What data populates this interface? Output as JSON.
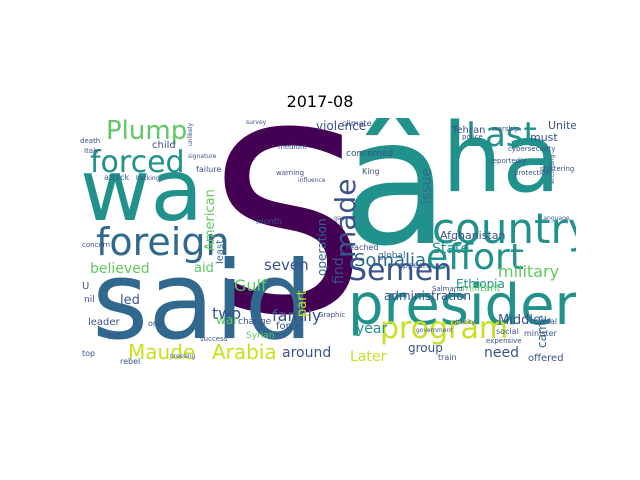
{
  "title": "2017-08",
  "palette": {
    "navy": "#3b528b",
    "teal": "#21918c",
    "green": "#5ec962",
    "yellow": "#c8e020",
    "purple": "#440154",
    "slate": "#31688e",
    "lime": "#addc30"
  },
  "words": [
    {
      "text": "S",
      "color": "#440154"
    },
    {
      "text": "â",
      "color": "#21918c"
    },
    {
      "text": "wa",
      "color": "#21918c"
    },
    {
      "text": "ha",
      "color": "#21918c"
    },
    {
      "text": "said",
      "color": "#31688e"
    },
    {
      "text": "president",
      "color": "#21918c"
    },
    {
      "text": "country",
      "color": "#21918c"
    },
    {
      "text": "foreign",
      "color": "#31688e"
    },
    {
      "text": "forced",
      "color": "#21918c"
    },
    {
      "text": "Last",
      "color": "#21918c"
    },
    {
      "text": "effort",
      "color": "#21918c"
    },
    {
      "text": "Semen",
      "color": "#3b528b"
    },
    {
      "text": "program",
      "color": "#c8e020"
    },
    {
      "text": "made",
      "color": "#3b528b"
    },
    {
      "text": "Plump",
      "color": "#5ec962"
    },
    {
      "text": "Arabia",
      "color": "#c8e020"
    },
    {
      "text": "Maude",
      "color": "#c8e020"
    },
    {
      "text": "Somalia",
      "color": "#31688e"
    },
    {
      "text": "military",
      "color": "#5ec962"
    },
    {
      "text": "family",
      "color": "#3b528b"
    },
    {
      "text": "seven",
      "color": "#3b528b"
    },
    {
      "text": "Gulf",
      "color": "#5ec962"
    },
    {
      "text": "two",
      "color": "#3b528b"
    },
    {
      "text": "believed",
      "color": "#5ec962"
    },
    {
      "text": "around",
      "color": "#3b528b"
    },
    {
      "text": "American",
      "color": "#5ec962"
    },
    {
      "text": "find",
      "color": "#3b528b"
    },
    {
      "text": "issue",
      "color": "#31688e"
    },
    {
      "text": "State",
      "color": "#21918c"
    },
    {
      "text": "year",
      "color": "#21918c"
    },
    {
      "text": "need",
      "color": "#3b528b"
    },
    {
      "text": "group",
      "color": "#3b528b"
    },
    {
      "text": "Later",
      "color": "#c8e020"
    },
    {
      "text": "Middle",
      "color": "#3b528b"
    },
    {
      "text": "Ethiopia",
      "color": "#21918c"
    },
    {
      "text": "administration",
      "color": "#3b528b"
    },
    {
      "text": "Afghanistan",
      "color": "#3b528b"
    },
    {
      "text": "operation",
      "color": "#31688e"
    },
    {
      "text": "violence",
      "color": "#3b528b"
    },
    {
      "text": "aid",
      "color": "#5ec962"
    },
    {
      "text": "led",
      "color": "#3b528b"
    },
    {
      "text": "war",
      "color": "#5ec962"
    },
    {
      "text": "part",
      "color": "#c8e020"
    },
    {
      "text": "came",
      "color": "#31688e"
    },
    {
      "text": "United",
      "color": "#3b528b"
    },
    {
      "text": "must",
      "color": "#3b528b"
    },
    {
      "text": "Tehran",
      "color": "#3b528b"
    },
    {
      "text": "least",
      "color": "#31688e"
    },
    {
      "text": "force",
      "color": "#3b528b"
    },
    {
      "text": "leader",
      "color": "#3b528b"
    },
    {
      "text": "child",
      "color": "#3b528b"
    },
    {
      "text": "concerned",
      "color": "#3b528b"
    },
    {
      "text": "militant",
      "color": "#5ec962"
    },
    {
      "text": "global",
      "color": "#31688e"
    },
    {
      "text": "appears",
      "color": "#3b528b"
    },
    {
      "text": "reached",
      "color": "#3b528b"
    },
    {
      "text": "climate",
      "color": "#3b528b"
    },
    {
      "text": "Syrian",
      "color": "#5ec962"
    },
    {
      "text": "change",
      "color": "#3b528b"
    },
    {
      "text": "month",
      "color": "#3b528b"
    },
    {
      "text": "attack",
      "color": "#31688e"
    },
    {
      "text": "failure",
      "color": "#3b528b"
    },
    {
      "text": "minister",
      "color": "#3b528b"
    },
    {
      "text": "offered",
      "color": "#3b528b"
    },
    {
      "text": "deal",
      "color": "#3b528b"
    },
    {
      "text": "train",
      "color": "#3b528b"
    },
    {
      "text": "social",
      "color": "#3b528b"
    },
    {
      "text": "top",
      "color": "#3b528b"
    },
    {
      "text": "rebel",
      "color": "#3b528b"
    },
    {
      "text": "put",
      "color": "#3b528b"
    },
    {
      "text": "one",
      "color": "#3b528b"
    },
    {
      "text": "King",
      "color": "#3b528b"
    },
    {
      "text": "protection",
      "color": "#3b528b"
    },
    {
      "text": "reportedly",
      "color": "#3b528b"
    },
    {
      "text": "warning",
      "color": "#3b528b"
    },
    {
      "text": "death",
      "color": "#3b528b"
    },
    {
      "text": "Italy",
      "color": "#3b528b"
    },
    {
      "text": "concern",
      "color": "#3b528b"
    },
    {
      "text": "expensive",
      "color": "#3b528b"
    },
    {
      "text": "warship",
      "color": "#3b528b"
    },
    {
      "text": "police",
      "color": "#3b528b"
    },
    {
      "text": "cybersecurity",
      "color": "#3b528b"
    },
    {
      "text": "Salmand",
      "color": "#3b528b"
    },
    {
      "text": "Graphic",
      "color": "#3b528b"
    },
    {
      "text": "stuttering",
      "color": "#3b528b"
    },
    {
      "text": "success",
      "color": "#3b528b"
    },
    {
      "text": "medium",
      "color": "#3b528b"
    },
    {
      "text": "survey",
      "color": "#3b528b"
    },
    {
      "text": "influence",
      "color": "#3b528b"
    },
    {
      "text": "signature",
      "color": "#3b528b"
    },
    {
      "text": "unlikely",
      "color": "#3b528b"
    },
    {
      "text": "hacking",
      "color": "#3b528b"
    },
    {
      "text": "pressing",
      "color": "#3b528b"
    },
    {
      "text": "Language",
      "color": "#3b528b"
    },
    {
      "text": "government",
      "color": "#3b528b"
    },
    {
      "text": "according",
      "color": "#3b528b"
    },
    {
      "text": "atrocity",
      "color": "#3b528b"
    },
    {
      "text": "U",
      "color": "#3b528b"
    },
    {
      "text": "nil",
      "color": "#3b528b"
    },
    {
      "text": "gas",
      "color": "#3b528b"
    }
  ]
}
